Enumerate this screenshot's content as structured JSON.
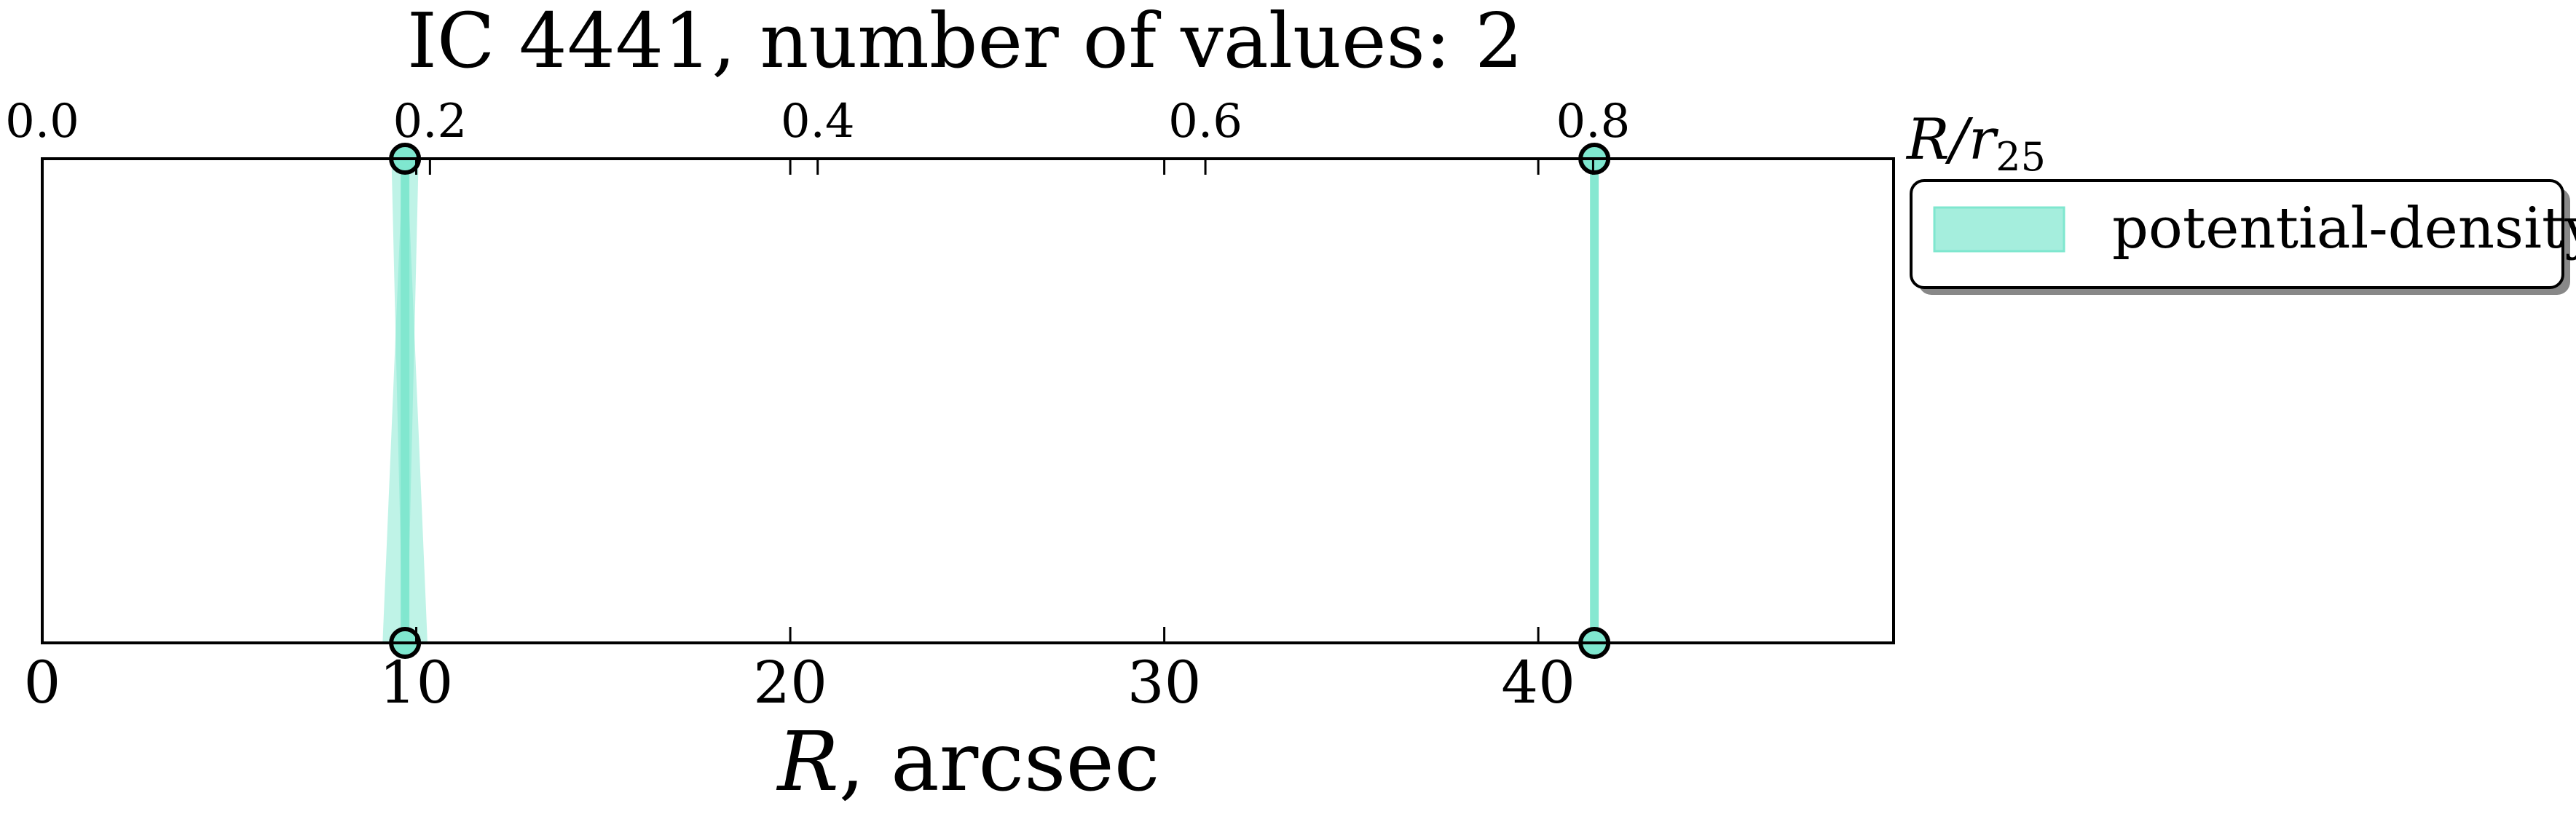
{
  "chart_data": {
    "type": "scatter",
    "title": "IC 4441, number of values: 2",
    "xlabel": "R, arcsec",
    "xlabel_symbol": "R",
    "xlabel_unit": ", arcsec",
    "top_xlabel": "R/r25",
    "top_xlabel_main": "R/r",
    "top_xlabel_sub": "25",
    "xlim": [
      0,
      49.5
    ],
    "xticks": [
      0,
      10,
      20,
      30,
      40
    ],
    "xtick_labels": [
      "0",
      "10",
      "20",
      "30",
      "40"
    ],
    "top_xlim": [
      0,
      0.955
    ],
    "top_xticks": [
      0.0,
      0.2,
      0.4,
      0.6,
      0.8
    ],
    "top_xtick_labels": [
      "0.0",
      "0.2",
      "0.4",
      "0.6",
      "0.8"
    ],
    "grid": false,
    "legend_position": "outside-right-top",
    "series": [
      {
        "name": "potential-density",
        "color": "#7fe7cf",
        "edge_color": "#000000",
        "x": [
          9.7,
          41.5
        ],
        "x_spread": [
          0.6,
          0.2
        ]
      }
    ]
  }
}
